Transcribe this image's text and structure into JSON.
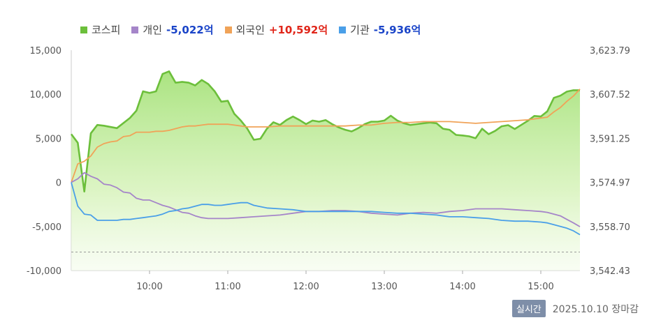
{
  "chart_data": {
    "type": "line",
    "legend": [
      {
        "name": "코스피",
        "value": "",
        "color": "#6cbf3b",
        "value_color": ""
      },
      {
        "name": "개인",
        "value": "-5,022억",
        "color": "#a585c9",
        "value_color": "#1a44c8"
      },
      {
        "name": "외국인",
        "value": "+10,592억",
        "color": "#f0a358",
        "value_color": "#e0261a"
      },
      {
        "name": "기관",
        "value": "-5,936억",
        "color": "#4a9fe8",
        "value_color": "#1a44c8"
      }
    ],
    "y_left": {
      "min": -10000,
      "max": 15000,
      "ticks": [
        "15,000",
        "10,000",
        "5,000",
        "0",
        "-5,000",
        "-10,000"
      ],
      "tick_values": [
        15000,
        10000,
        5000,
        0,
        -5000,
        -10000
      ]
    },
    "y_right": {
      "min": 3542.43,
      "max": 3623.79,
      "ticks": [
        "3,623.79",
        "3,607.52",
        "3,591.25",
        "3,574.97",
        "3,558.70",
        "3,542.43"
      ],
      "tick_values": [
        3623.79,
        3607.52,
        3591.25,
        3574.97,
        3558.7,
        3542.43
      ]
    },
    "x_range": [
      "09:00",
      "15:30"
    ],
    "x_ticks": [
      "10:00",
      "11:00",
      "12:00",
      "13:00",
      "14:00",
      "15:00"
    ],
    "reference_line_value": -7900,
    "series": [
      {
        "name": "코스피",
        "axis": "right",
        "color": "#6cbf3b",
        "t": [
          "09:00",
          "09:05",
          "09:10",
          "09:15",
          "09:20",
          "09:25",
          "09:35",
          "09:45",
          "09:50",
          "09:55",
          "10:00",
          "10:05",
          "10:10",
          "10:15",
          "10:20",
          "10:25",
          "10:30",
          "10:35",
          "10:40",
          "10:45",
          "10:50",
          "10:55",
          "11:00",
          "11:05",
          "11:10",
          "11:15",
          "11:20",
          "11:25",
          "11:30",
          "11:35",
          "11:40",
          "11:45",
          "11:50",
          "11:55",
          "12:00",
          "12:05",
          "12:10",
          "12:15",
          "12:20",
          "12:25",
          "12:30",
          "12:35",
          "12:40",
          "12:45",
          "12:50",
          "12:55",
          "13:00",
          "13:05",
          "13:10",
          "13:15",
          "13:20",
          "13:25",
          "13:30",
          "13:35",
          "13:40",
          "13:45",
          "13:50",
          "13:55",
          "14:00",
          "14:05",
          "14:10",
          "14:15",
          "14:20",
          "14:25",
          "14:30",
          "14:35",
          "14:40",
          "14:45",
          "14:50",
          "14:55",
          "15:00",
          "15:05",
          "15:10",
          "15:15",
          "15:20",
          "15:25",
          "15:30"
        ],
        "values": [
          3592.8,
          3589.6,
          3571.6,
          3593.1,
          3596.2,
          3595.9,
          3595.0,
          3598.8,
          3601.5,
          3608.6,
          3608.0,
          3608.6,
          3615.0,
          3616.0,
          3611.8,
          3612.1,
          3611.8,
          3610.8,
          3612.8,
          3611.3,
          3608.6,
          3604.8,
          3605.1,
          3600.3,
          3597.8,
          3594.8,
          3590.7,
          3591.1,
          3594.8,
          3597.2,
          3596.2,
          3598.0,
          3599.3,
          3598.0,
          3596.5,
          3597.8,
          3597.4,
          3598.0,
          3596.5,
          3595.3,
          3594.4,
          3593.8,
          3595.0,
          3596.5,
          3597.4,
          3597.4,
          3597.8,
          3599.6,
          3597.8,
          3596.8,
          3596.2,
          3596.5,
          3596.8,
          3597.1,
          3596.8,
          3594.8,
          3594.4,
          3592.5,
          3592.3,
          3592.0,
          3591.3,
          3594.8,
          3592.8,
          3594.0,
          3595.7,
          3596.1,
          3594.7,
          3596.2,
          3597.7,
          3599.5,
          3599.3,
          3601.2,
          3606.2,
          3607.0,
          3608.5,
          3609.0,
          3609.0
        ]
      },
      {
        "name": "외국인",
        "axis": "left",
        "color": "#f0a358",
        "t": [
          "09:00",
          "09:05",
          "09:10",
          "09:15",
          "09:20",
          "09:25",
          "09:30",
          "09:35",
          "09:40",
          "09:45",
          "09:50",
          "09:55",
          "10:00",
          "10:05",
          "10:10",
          "10:15",
          "10:20",
          "10:25",
          "10:30",
          "10:35",
          "10:40",
          "10:45",
          "10:50",
          "10:55",
          "11:00",
          "11:05",
          "11:10",
          "11:15",
          "11:20",
          "11:30",
          "11:40",
          "11:50",
          "12:00",
          "12:10",
          "12:20",
          "12:30",
          "12:40",
          "12:50",
          "13:00",
          "13:10",
          "13:20",
          "13:30",
          "13:40",
          "13:50",
          "14:00",
          "14:10",
          "14:20",
          "14:30",
          "14:40",
          "14:50",
          "15:00",
          "15:05",
          "15:10",
          "15:15",
          "15:20",
          "15:25",
          "15:30"
        ],
        "values": [
          0,
          2100,
          2400,
          3000,
          4000,
          4400,
          4600,
          4700,
          5200,
          5300,
          5700,
          5700,
          5700,
          5800,
          5800,
          5900,
          6100,
          6300,
          6400,
          6400,
          6500,
          6600,
          6600,
          6600,
          6600,
          6500,
          6400,
          6300,
          6300,
          6300,
          6400,
          6400,
          6400,
          6400,
          6400,
          6400,
          6500,
          6500,
          6700,
          6800,
          6800,
          6900,
          6900,
          6900,
          6800,
          6700,
          6800,
          6900,
          7000,
          7100,
          7300,
          7400,
          8000,
          8500,
          9200,
          9800,
          10592
        ]
      },
      {
        "name": "개인",
        "axis": "left",
        "color": "#a585c9",
        "t": [
          "09:00",
          "09:05",
          "09:10",
          "09:15",
          "09:20",
          "09:25",
          "09:30",
          "09:35",
          "09:40",
          "09:45",
          "09:50",
          "09:55",
          "10:00",
          "10:05",
          "10:10",
          "10:15",
          "10:20",
          "10:25",
          "10:30",
          "10:35",
          "10:40",
          "10:45",
          "10:50",
          "10:55",
          "11:00",
          "11:10",
          "11:20",
          "11:30",
          "11:40",
          "11:50",
          "12:00",
          "12:10",
          "12:20",
          "12:30",
          "12:40",
          "12:50",
          "13:00",
          "13:10",
          "13:20",
          "13:30",
          "13:40",
          "13:50",
          "14:00",
          "14:10",
          "14:20",
          "14:30",
          "14:40",
          "14:50",
          "15:00",
          "15:05",
          "15:10",
          "15:15",
          "15:20",
          "15:25",
          "15:30"
        ],
        "values": [
          0,
          400,
          1100,
          700,
          400,
          -200,
          -300,
          -600,
          -1100,
          -1200,
          -1800,
          -2000,
          -2000,
          -2300,
          -2600,
          -2800,
          -3100,
          -3400,
          -3500,
          -3800,
          -4000,
          -4100,
          -4100,
          -4100,
          -4100,
          -4000,
          -3900,
          -3800,
          -3700,
          -3500,
          -3300,
          -3300,
          -3200,
          -3200,
          -3300,
          -3500,
          -3600,
          -3700,
          -3500,
          -3400,
          -3500,
          -3300,
          -3200,
          -3000,
          -3000,
          -3000,
          -3100,
          -3200,
          -3300,
          -3400,
          -3600,
          -3800,
          -4200,
          -4600,
          -5022
        ]
      },
      {
        "name": "기관",
        "axis": "left",
        "color": "#4a9fe8",
        "t": [
          "09:00",
          "09:05",
          "09:10",
          "09:15",
          "09:20",
          "09:25",
          "09:30",
          "09:35",
          "09:40",
          "09:45",
          "09:50",
          "09:55",
          "10:00",
          "10:05",
          "10:10",
          "10:15",
          "10:20",
          "10:25",
          "10:30",
          "10:35",
          "10:40",
          "10:45",
          "10:50",
          "10:55",
          "11:00",
          "11:05",
          "11:10",
          "11:15",
          "11:20",
          "11:30",
          "11:40",
          "11:50",
          "12:00",
          "12:10",
          "12:20",
          "12:30",
          "12:40",
          "12:50",
          "13:00",
          "13:10",
          "13:20",
          "13:30",
          "13:40",
          "13:50",
          "14:00",
          "14:10",
          "14:20",
          "14:30",
          "14:40",
          "14:50",
          "15:00",
          "15:05",
          "15:10",
          "15:15",
          "15:20",
          "15:25",
          "15:30"
        ],
        "values": [
          0,
          -2700,
          -3600,
          -3700,
          -4300,
          -4300,
          -4300,
          -4300,
          -4200,
          -4200,
          -4100,
          -4000,
          -3900,
          -3800,
          -3600,
          -3300,
          -3200,
          -3000,
          -2900,
          -2700,
          -2500,
          -2500,
          -2600,
          -2600,
          -2500,
          -2400,
          -2300,
          -2300,
          -2600,
          -2900,
          -3000,
          -3100,
          -3300,
          -3300,
          -3300,
          -3300,
          -3300,
          -3300,
          -3400,
          -3500,
          -3500,
          -3600,
          -3700,
          -3900,
          -3900,
          -4000,
          -4100,
          -4300,
          -4400,
          -4400,
          -4500,
          -4600,
          -4800,
          -5000,
          -5200,
          -5500,
          -5936
        ]
      }
    ]
  },
  "footer": {
    "badge": "실시간",
    "date": "2025.10.10 장마감"
  }
}
